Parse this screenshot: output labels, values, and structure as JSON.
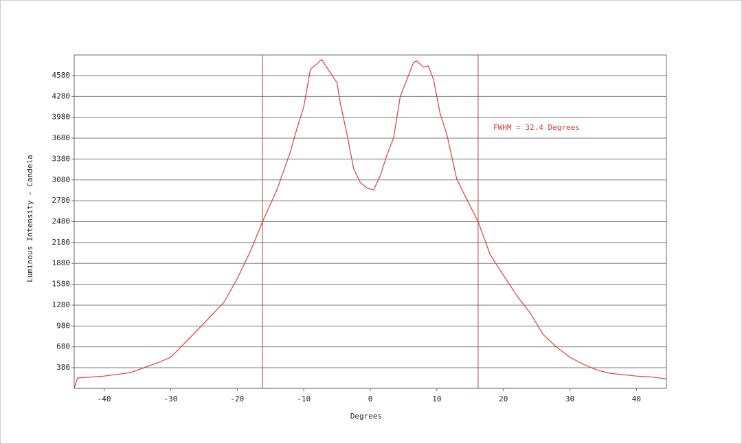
{
  "chart_data": {
    "type": "line",
    "xlabel": "Degrees",
    "ylabel": "Luminous Intensity - Candela",
    "annotation": "FWHM = 32.4 Degrees",
    "vlines": [
      -16.2,
      16.2
    ],
    "color": "#e23b3b",
    "grid": true,
    "xlim": [
      -44.5,
      44.5
    ],
    "ylim": [
      84,
      4876
    ],
    "xticks": [
      -40,
      -30,
      -20,
      -10,
      0,
      10,
      20,
      30,
      40
    ],
    "yticks": [
      380,
      680,
      980,
      1280,
      1580,
      1880,
      2180,
      2480,
      2780,
      3080,
      3380,
      3680,
      3980,
      4280,
      4580
    ],
    "x": [
      -44.5,
      -44,
      -40,
      -36,
      -34,
      -32,
      -30,
      -28,
      -26,
      -24,
      -22,
      -20,
      -18,
      -16.2,
      -14,
      -12,
      -11,
      -10,
      -9,
      -8,
      -7.3,
      -6,
      -5,
      -4.5,
      -3.5,
      -2.5,
      -1.5,
      -0.5,
      0.5,
      1.5,
      2.5,
      3.5,
      4.5,
      5.5,
      6.5,
      7,
      8,
      8.7,
      9.5,
      10.5,
      11.5,
      13,
      14.5,
      16.2,
      18,
      20,
      22,
      24,
      26,
      28,
      30,
      32,
      34,
      36,
      38,
      40,
      42,
      44.5
    ],
    "values": [
      84,
      232,
      260,
      310,
      380,
      450,
      530,
      725,
      920,
      1120,
      1320,
      1660,
      2060,
      2480,
      2945,
      3490,
      3830,
      4130,
      4670,
      4750,
      4810,
      4620,
      4475,
      4180,
      3735,
      3240,
      3040,
      2965,
      2935,
      3140,
      3440,
      3685,
      4280,
      4525,
      4770,
      4790,
      4700,
      4720,
      4525,
      4030,
      3735,
      3090,
      2800,
      2480,
      2010,
      1710,
      1420,
      1170,
      855,
      676,
      530,
      430,
      350,
      300,
      280,
      260,
      250,
      220
    ]
  }
}
